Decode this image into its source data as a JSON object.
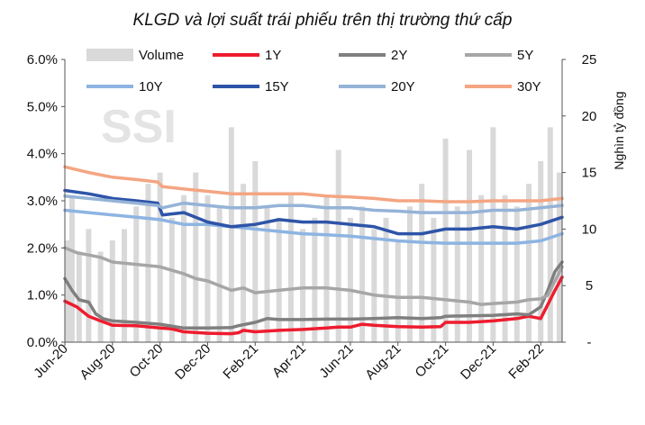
{
  "chart_data": {
    "type": "line",
    "title": "KLGD và lợi suất trái phiếu trên thị trường thứ cấp",
    "watermark": "SSI",
    "ylabel": "",
    "y2label": "Nghìn tỷ đồng",
    "ylim": [
      0,
      6
    ],
    "y2lim": [
      0,
      25
    ],
    "yticks": [
      "0.0%",
      "1.0%",
      "2.0%",
      "3.0%",
      "4.0%",
      "5.0%",
      "6.0%"
    ],
    "yticks_values": [
      0,
      1,
      2,
      3,
      4,
      5,
      6
    ],
    "y2ticks": [
      "-",
      "5",
      "10",
      "15",
      "20",
      "25"
    ],
    "y2ticks_values": [
      0,
      5,
      10,
      15,
      20,
      25
    ],
    "xticks": [
      "Jun-20",
      "Aug-20",
      "Oct-20",
      "Dec-20",
      "Feb-21",
      "Apr-21",
      "Jun-21",
      "Aug-21",
      "Oct-21",
      "Dec-21",
      "Feb-22"
    ],
    "x_range_months": [
      0,
      20.9
    ],
    "legend": [
      "Volume",
      "1Y",
      "2Y",
      "5Y",
      "10Y",
      "15Y",
      "20Y",
      "30Y"
    ],
    "volume": {
      "name": "Volume",
      "color": "#d9d9d9",
      "x": [
        0,
        0.3,
        0.6,
        1.0,
        1.5,
        2.0,
        2.5,
        3.0,
        3.5,
        4.0,
        4.5,
        5.0,
        5.5,
        6.0,
        6.5,
        7.0,
        7.5,
        8.0,
        8.5,
        9.0,
        9.5,
        10.0,
        10.5,
        11.0,
        11.5,
        12.0,
        12.5,
        13.0,
        13.5,
        14.0,
        14.5,
        15.0,
        15.5,
        16.0,
        16.5,
        17.0,
        17.5,
        18.0,
        18.5,
        19.0,
        19.5,
        20.0,
        20.4,
        20.9
      ],
      "values": [
        9,
        13,
        8,
        10,
        8,
        9,
        10,
        12,
        14,
        15,
        11,
        13,
        15,
        13,
        12,
        19,
        14,
        16,
        12,
        11,
        13,
        10,
        11,
        13,
        17,
        11,
        12,
        10,
        11,
        9,
        12,
        14,
        11,
        18,
        12,
        17,
        13,
        19,
        13,
        12,
        14,
        16,
        19,
        15
      ]
    },
    "series": [
      {
        "name": "1Y",
        "color": "#ee1c2e",
        "x": [
          0,
          0.5,
          1.0,
          1.5,
          2.0,
          3.0,
          4.0,
          4.5,
          5.0,
          6.0,
          7.0,
          7.3,
          7.5,
          8.0,
          9.0,
          10.0,
          11.0,
          11.5,
          12.0,
          12.5,
          13.0,
          14.0,
          15.0,
          15.8,
          16.0,
          17.0,
          18.0,
          19.0,
          19.5,
          20.0,
          20.3,
          20.6,
          20.9
        ],
        "values": [
          0.87,
          0.75,
          0.55,
          0.45,
          0.36,
          0.35,
          0.3,
          0.28,
          0.22,
          0.19,
          0.18,
          0.2,
          0.25,
          0.22,
          0.25,
          0.27,
          0.3,
          0.32,
          0.32,
          0.38,
          0.36,
          0.33,
          0.32,
          0.33,
          0.42,
          0.42,
          0.45,
          0.5,
          0.55,
          0.5,
          0.8,
          1.1,
          1.38
        ]
      },
      {
        "name": "2Y",
        "color": "#7f7f7f",
        "x": [
          0,
          0.3,
          0.6,
          1.0,
          1.3,
          1.6,
          2.0,
          3.0,
          4.0,
          5.0,
          6.0,
          7.0,
          7.3,
          8.0,
          8.5,
          9.0,
          10.0,
          11.0,
          12.0,
          13.0,
          14.0,
          15.0,
          15.8,
          16.0,
          17.0,
          18.0,
          19.0,
          19.5,
          20.0,
          20.3,
          20.6,
          20.9
        ],
        "values": [
          1.35,
          1.1,
          0.9,
          0.85,
          0.6,
          0.5,
          0.45,
          0.42,
          0.38,
          0.3,
          0.3,
          0.31,
          0.35,
          0.42,
          0.5,
          0.48,
          0.48,
          0.49,
          0.49,
          0.5,
          0.52,
          0.5,
          0.52,
          0.55,
          0.56,
          0.57,
          0.6,
          0.58,
          0.75,
          1.1,
          1.5,
          1.7
        ]
      },
      {
        "name": "5Y",
        "color": "#a6a6a6",
        "x": [
          0,
          0.5,
          1.0,
          1.5,
          2.0,
          3.0,
          4.0,
          5.0,
          5.5,
          6.0,
          6.5,
          7.0,
          7.5,
          8.0,
          9.0,
          10.0,
          11.0,
          12.0,
          13.0,
          14.0,
          15.0,
          16.0,
          17.0,
          17.5,
          18.0,
          19.0,
          19.5,
          20.0,
          20.3,
          20.6,
          20.9
        ],
        "values": [
          2.0,
          1.9,
          1.85,
          1.8,
          1.7,
          1.65,
          1.6,
          1.45,
          1.35,
          1.3,
          1.2,
          1.1,
          1.15,
          1.05,
          1.1,
          1.15,
          1.15,
          1.1,
          1.0,
          0.95,
          0.95,
          0.9,
          0.85,
          0.8,
          0.82,
          0.85,
          0.9,
          0.92,
          1.0,
          1.3,
          1.6
        ]
      },
      {
        "name": "10Y",
        "color": "#8db4e2",
        "x": [
          0,
          1,
          2,
          3,
          4,
          5,
          6,
          7,
          8,
          9,
          10,
          11,
          12,
          13,
          14,
          15,
          16,
          17,
          18,
          19,
          20,
          20.9
        ],
        "values": [
          2.8,
          2.75,
          2.7,
          2.65,
          2.6,
          2.5,
          2.5,
          2.45,
          2.4,
          2.35,
          2.3,
          2.28,
          2.25,
          2.2,
          2.15,
          2.12,
          2.1,
          2.1,
          2.1,
          2.1,
          2.15,
          2.3
        ]
      },
      {
        "name": "15Y",
        "color": "#2e54a8",
        "x": [
          0,
          1,
          2,
          3,
          3.9,
          4.1,
          5,
          6,
          7,
          8,
          9,
          10,
          11,
          12,
          13,
          14,
          15,
          16,
          17,
          18,
          19,
          20,
          20.9
        ],
        "values": [
          3.22,
          3.15,
          3.05,
          3.0,
          2.95,
          2.7,
          2.75,
          2.55,
          2.45,
          2.5,
          2.6,
          2.55,
          2.55,
          2.5,
          2.45,
          2.3,
          2.3,
          2.4,
          2.4,
          2.45,
          2.4,
          2.5,
          2.65
        ]
      },
      {
        "name": "20Y",
        "color": "#95b3d7",
        "x": [
          0,
          1,
          2,
          3,
          3.9,
          4.1,
          5,
          6,
          7,
          8,
          9,
          10,
          11,
          12,
          13,
          14,
          15,
          16,
          17,
          18,
          19,
          20,
          20.9
        ],
        "values": [
          3.1,
          3.05,
          3.0,
          2.95,
          2.9,
          2.85,
          2.95,
          2.9,
          2.85,
          2.85,
          2.9,
          2.9,
          2.85,
          2.85,
          2.8,
          2.78,
          2.75,
          2.75,
          2.75,
          2.8,
          2.8,
          2.85,
          2.9
        ]
      },
      {
        "name": "30Y",
        "color": "#f4a582",
        "x": [
          0,
          1,
          2,
          3,
          3.9,
          4.1,
          5,
          6,
          7,
          8,
          9,
          10,
          11,
          12,
          13,
          14,
          15,
          16,
          17,
          18,
          19,
          20,
          20.9
        ],
        "values": [
          3.72,
          3.6,
          3.5,
          3.45,
          3.4,
          3.3,
          3.25,
          3.2,
          3.15,
          3.15,
          3.15,
          3.15,
          3.1,
          3.08,
          3.05,
          3.0,
          3.0,
          2.98,
          2.98,
          3.0,
          3.0,
          3.0,
          3.05
        ]
      }
    ]
  }
}
